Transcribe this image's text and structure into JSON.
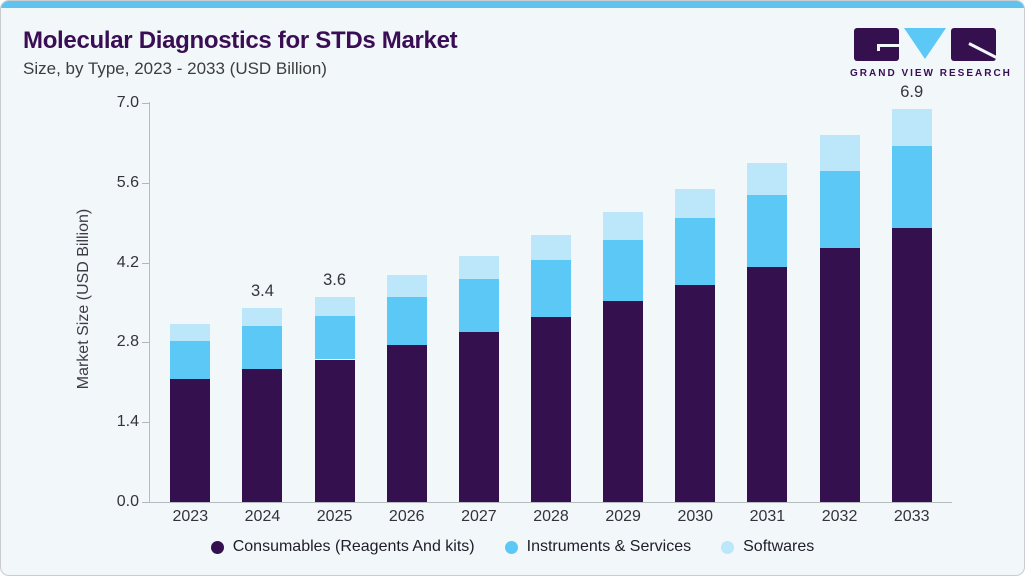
{
  "logo": {
    "text": "GRAND VIEW RESEARCH"
  },
  "colors": {
    "top_accent": "#60c3ee",
    "card_background": "#f2f7fa",
    "title_text": "#3a0e55",
    "logo_purple": "#34114e",
    "logo_blue": "#5bc8f5"
  },
  "chart_data": {
    "type": "bar",
    "stacked": true,
    "title": "Molecular Diagnostics for STDs Market",
    "subtitle": "Size, by Type, 2023 - 2033 (USD Billion)",
    "ylabel": "Market Size (USD Billion)",
    "xlabel": "",
    "ylim": [
      0,
      7.0
    ],
    "yticks": [
      "0.0",
      "1.4",
      "2.8",
      "4.2",
      "5.6",
      "7.0"
    ],
    "grid": false,
    "legend_position": "bottom",
    "categories": [
      "2023",
      "2024",
      "2025",
      "2026",
      "2027",
      "2028",
      "2029",
      "2030",
      "2031",
      "2032",
      "2033"
    ],
    "series": [
      {
        "name": "Consumables (Reagents And kits)",
        "color": "#34114e",
        "values": [
          2.15,
          2.33,
          2.5,
          2.76,
          2.98,
          3.24,
          3.52,
          3.81,
          4.13,
          4.45,
          4.8
        ]
      },
      {
        "name": "Instruments & Services",
        "color": "#5bc8f5",
        "values": [
          0.67,
          0.75,
          0.77,
          0.84,
          0.93,
          1.0,
          1.07,
          1.17,
          1.26,
          1.36,
          1.45
        ]
      },
      {
        "name": "Softwares",
        "color": "#bce7fa",
        "values": [
          0.3,
          0.32,
          0.33,
          0.39,
          0.41,
          0.45,
          0.49,
          0.52,
          0.56,
          0.62,
          0.65
        ]
      }
    ],
    "bar_labels": [
      "",
      "3.4",
      "3.6",
      "",
      "",
      "",
      "",
      "",
      "",
      "",
      "6.9"
    ],
    "totals": [
      3.1,
      3.4,
      3.6,
      4.0,
      4.3,
      4.7,
      5.1,
      5.5,
      6.0,
      6.4,
      6.9
    ]
  }
}
